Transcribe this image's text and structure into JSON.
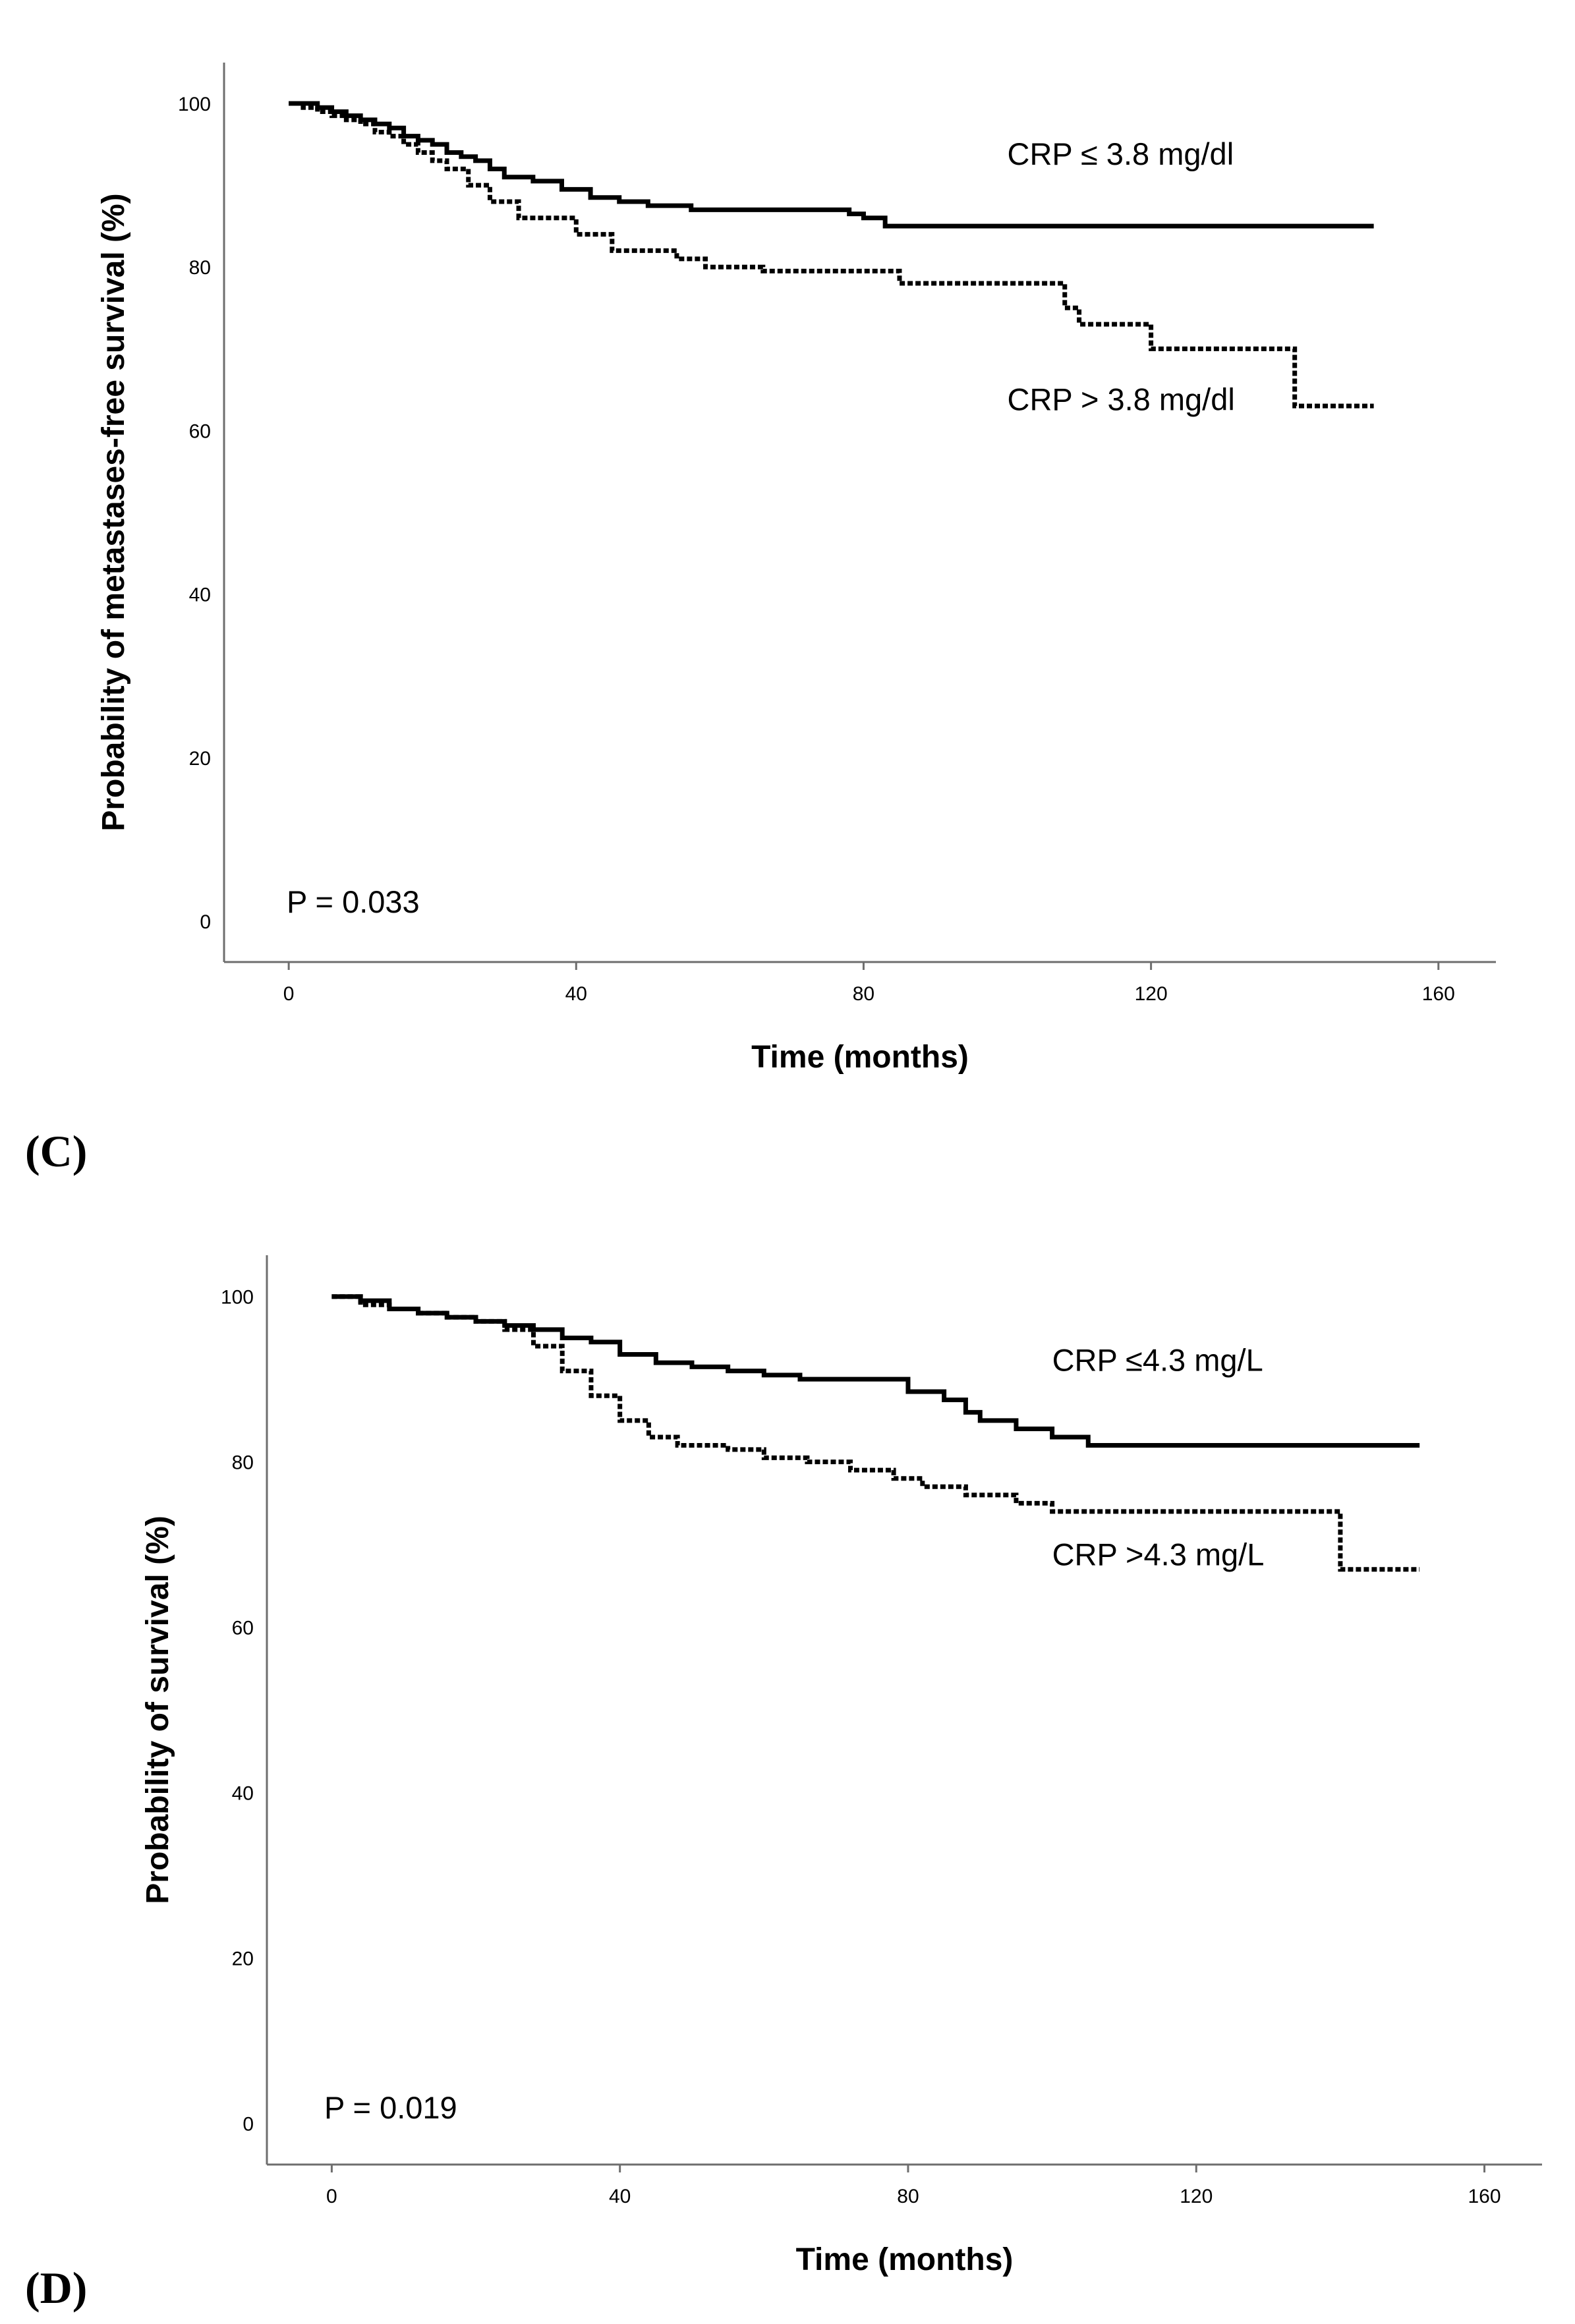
{
  "chart_data": [
    {
      "type": "line",
      "panel_label": "(C)",
      "xlabel": "Time (months)",
      "ylabel": "Probability of metastases-free survival (%)",
      "xlim": [
        -9,
        168
      ],
      "ylim": [
        -5,
        105
      ],
      "xticks": [
        0,
        40,
        80,
        120,
        160
      ],
      "yticks": [
        0,
        20,
        40,
        60,
        80,
        100
      ],
      "annotation": "P = 0.033",
      "series": [
        {
          "name": "CRP ≤ 3.8 mg/dl",
          "style": "solid",
          "x": [
            0,
            2,
            4,
            6,
            8,
            10,
            12,
            14,
            16,
            18,
            20,
            22,
            24,
            26,
            28,
            30,
            34,
            38,
            42,
            46,
            50,
            56,
            60,
            66,
            78,
            80,
            83,
            151
          ],
          "y": [
            100,
            100,
            99.5,
            99,
            98.5,
            98,
            97.5,
            97,
            96,
            95.5,
            95,
            94,
            93.5,
            93,
            92,
            91,
            90.5,
            89.5,
            88.5,
            88,
            87.5,
            87,
            87,
            87,
            86.5,
            86,
            85,
            85
          ]
        },
        {
          "name": "CRP > 3.8 mg/dl",
          "style": "dotted",
          "x": [
            0,
            2,
            4,
            6,
            8,
            10,
            12,
            14,
            16,
            18,
            20,
            22,
            25,
            28,
            32,
            36,
            40,
            45,
            50,
            54,
            58,
            62,
            66,
            70,
            75,
            85,
            100,
            108,
            110,
            115,
            120,
            125,
            130,
            140,
            151
          ],
          "y": [
            100,
            99.5,
            99,
            98.5,
            98,
            97.5,
            96.5,
            96,
            95,
            94,
            93,
            92,
            90,
            88,
            86,
            86,
            84,
            82,
            82,
            81,
            80,
            80,
            79.5,
            79.5,
            79.5,
            78,
            78,
            75,
            73,
            73,
            70,
            70,
            70,
            63,
            63
          ]
        }
      ],
      "series_labels": [
        "CRP ≤ 3.8 mg/dl",
        "CRP > 3.8 mg/dl"
      ],
      "series_label_positions": [
        {
          "x": 100,
          "y": 92.5
        },
        {
          "x": 100,
          "y": 62.5
        }
      ]
    },
    {
      "type": "line",
      "panel_label": "(D)",
      "xlabel": "Time (months)",
      "ylabel": "Probability of survival (%)",
      "xlim": [
        -9,
        168
      ],
      "ylim": [
        -5,
        105
      ],
      "xticks": [
        0,
        40,
        80,
        120,
        160
      ],
      "yticks": [
        0,
        20,
        40,
        60,
        80,
        100
      ],
      "annotation": "P = 0.019",
      "series": [
        {
          "name": "CRP ≤4.3 mg/L",
          "style": "solid",
          "x": [
            0,
            4,
            8,
            12,
            16,
            20,
            24,
            28,
            32,
            36,
            40,
            45,
            50,
            55,
            60,
            65,
            70,
            80,
            85,
            88,
            90,
            95,
            100,
            105,
            110,
            151
          ],
          "y": [
            100,
            99.5,
            98.5,
            98,
            97.5,
            97,
            96.5,
            96,
            95,
            94.5,
            93,
            92,
            91.5,
            91,
            90.5,
            90,
            90,
            88.5,
            87.5,
            86,
            85,
            84,
            83,
            82,
            82,
            82
          ]
        },
        {
          "name": "CRP >4.3 mg/L",
          "style": "dotted",
          "x": [
            0,
            4,
            8,
            12,
            16,
            20,
            24,
            28,
            32,
            36,
            40,
            44,
            48,
            55,
            60,
            66,
            72,
            78,
            82,
            88,
            95,
            100,
            105,
            110,
            130,
            140,
            151
          ],
          "y": [
            100,
            99,
            98.5,
            98,
            97.5,
            97,
            96,
            94,
            91,
            88,
            85,
            83,
            82,
            81.5,
            80.5,
            80,
            79,
            78,
            77,
            76,
            75,
            74,
            74,
            74,
            74,
            67,
            67
          ]
        }
      ],
      "series_labels": [
        "CRP ≤4.3 mg/L",
        "CRP >4.3 mg/L"
      ],
      "series_label_positions": [
        {
          "x": 100,
          "y": 91
        },
        {
          "x": 100,
          "y": 67.5
        }
      ]
    }
  ]
}
